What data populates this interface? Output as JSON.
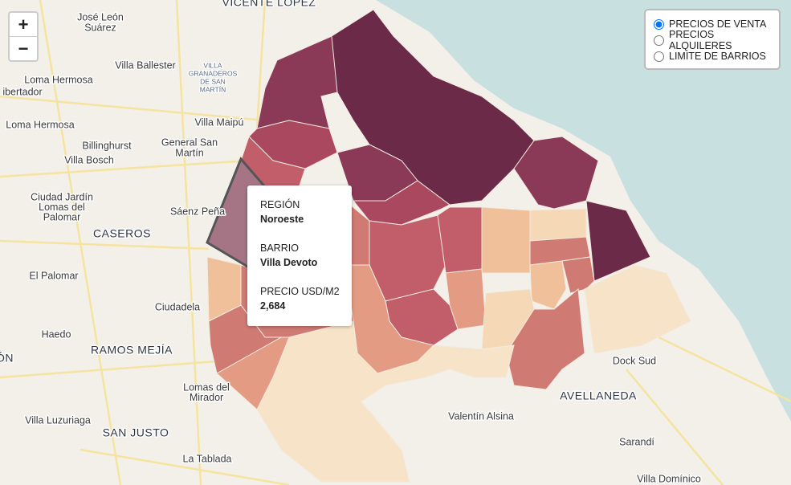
{
  "zoom_controls": {
    "zoom_in": "+",
    "zoom_out": "−"
  },
  "layer_options": [
    {
      "label": "PRECIOS DE VENTA",
      "selected": true
    },
    {
      "label": "PRECIOS ALQUILERES",
      "selected": false
    },
    {
      "label": "LIMITE DE BARRIOS",
      "selected": false
    }
  ],
  "tooltip": {
    "region_label": "REGIÓN",
    "region": "Noroeste",
    "barrio_label": "BARRIO",
    "barrio": "Villa Devoto",
    "price_label": "PRECIO USD/M2",
    "price": "2,684"
  },
  "place_labels": [
    [
      "VICENTE LÓPEZ"
    ],
    [
      "José León",
      "Suárez"
    ],
    [
      "Villa Ballester"
    ],
    [
      "VILLA",
      "GRANADEROS",
      "DE SAN",
      "MARTÍN"
    ],
    [
      "Loma Hermosa"
    ],
    [
      "ibertador"
    ],
    [
      "Loma Hermosa"
    ],
    [
      "Villa Maipú"
    ],
    [
      "Billinghurst"
    ],
    [
      "General San",
      "Martín"
    ],
    [
      "Villa Bosch"
    ],
    [
      "Ciudad Jardín",
      "Lomas del",
      "Palomar"
    ],
    [
      "Sáenz Peña"
    ],
    [
      "CASEROS"
    ],
    [
      "El Palomar"
    ],
    [
      "Ciudadela"
    ],
    [
      "Haedo"
    ],
    [
      "RAMOS MEJÍA"
    ],
    [
      "ÓN"
    ],
    [
      "Lomas del",
      "Mirador"
    ],
    [
      "Dock Sud"
    ],
    [
      "AVELLANEDA"
    ],
    [
      "Valentín Alsina"
    ],
    [
      "Villa Luzuriaga"
    ],
    [
      "SAN JUSTO"
    ],
    [
      "Sarandí"
    ],
    [
      "La Tablada"
    ],
    [
      "Villa Domínico"
    ]
  ]
}
